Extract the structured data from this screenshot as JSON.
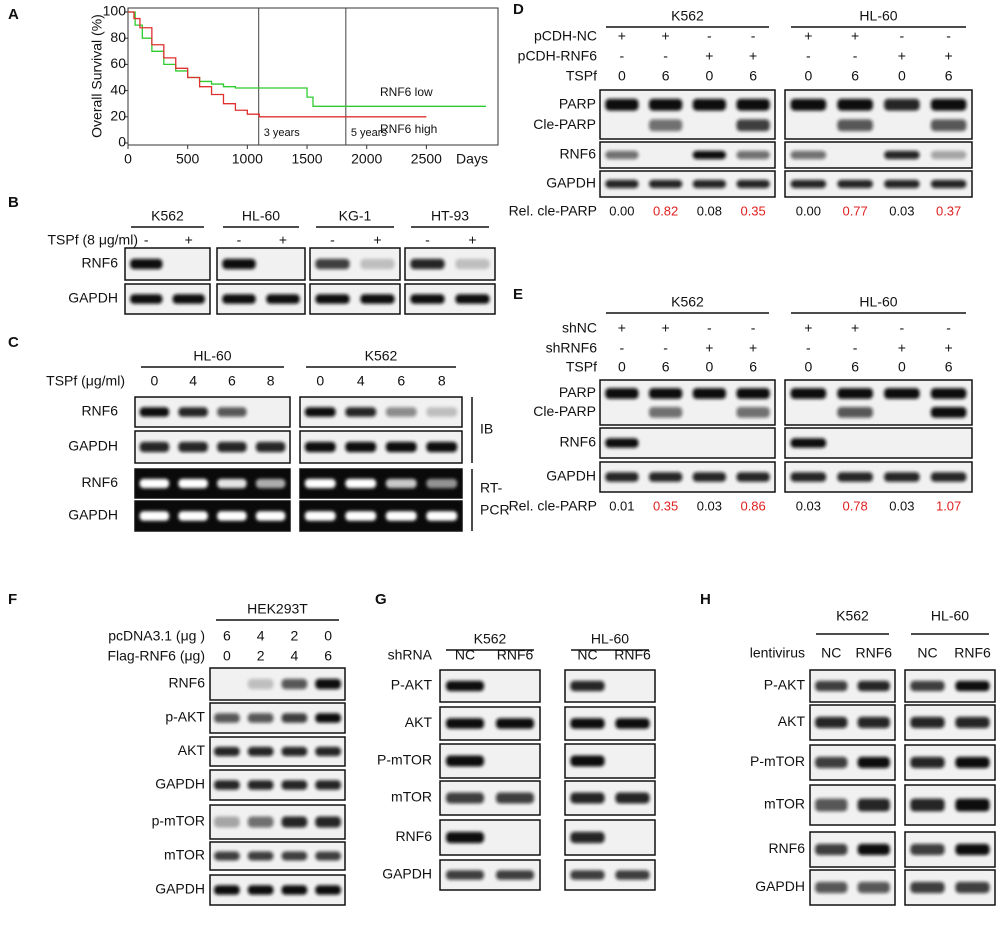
{
  "panels": {
    "A": {
      "label": "A",
      "type": "line",
      "ylabel": "Overall Survival (%)",
      "xlabel": "Days",
      "xlim": [
        0,
        3100
      ],
      "ylim": [
        0,
        100
      ],
      "xticks": [
        0,
        500,
        1000,
        1500,
        2000,
        2500
      ],
      "yticks": [
        0,
        20,
        40,
        60,
        80,
        100
      ],
      "vlines": [
        {
          "x": 1095,
          "label": "3 years"
        },
        {
          "x": 1825,
          "label": "5 years"
        }
      ],
      "series": [
        {
          "name": "RNF6 low",
          "color": "#2ecc2e",
          "x": [
            0,
            60,
            120,
            200,
            300,
            400,
            500,
            600,
            700,
            800,
            900,
            1000,
            1500,
            1550,
            3000
          ],
          "values": [
            100,
            90,
            80,
            70,
            60,
            55,
            50,
            47,
            45,
            43,
            42,
            42,
            35,
            28,
            28
          ]
        },
        {
          "name": "RNF6 high",
          "color": "#e03030",
          "x": [
            0,
            50,
            100,
            200,
            300,
            400,
            500,
            600,
            700,
            800,
            900,
            1000,
            1100,
            2500
          ],
          "values": [
            100,
            95,
            88,
            75,
            65,
            57,
            50,
            43,
            37,
            30,
            25,
            22,
            20,
            20
          ]
        }
      ]
    },
    "B": {
      "label": "B",
      "groups": [
        "K562",
        "HL-60",
        "KG-1",
        "HT-93"
      ],
      "conditions": [
        {
          "name": "TSPf (8 μg/ml)",
          "lanes": [
            [
              "-",
              "+"
            ],
            [
              "-",
              "+"
            ],
            [
              "-",
              "+"
            ],
            [
              "-",
              "+"
            ]
          ]
        }
      ],
      "rows": [
        {
          "labels": [
            "RNF6"
          ]
        },
        {
          "labels": [
            "GAPDH"
          ]
        }
      ]
    },
    "C": {
      "label": "C",
      "groups": [
        "HL-60",
        "K562"
      ],
      "conditions": [
        {
          "name": "TSPf (μg/ml)",
          "lanes": [
            [
              "0",
              "4",
              "6",
              "8"
            ],
            [
              "0",
              "4",
              "6",
              "8"
            ]
          ]
        }
      ],
      "rows": [
        {
          "labels": [
            "RNF6"
          ]
        },
        {
          "labels": [
            "GAPDH"
          ]
        },
        {
          "labels": [
            "RNF6"
          ]
        },
        {
          "labels": [
            "GAPDH"
          ]
        }
      ],
      "side_labels": [
        [
          "IB"
        ],
        [
          "RT-",
          "PCR"
        ]
      ]
    },
    "D": {
      "label": "D",
      "groups": [
        "K562",
        "HL-60"
      ],
      "conditions": [
        {
          "name": "pCDH-NC",
          "lanes": [
            [
              "+",
              "+",
              "-",
              "-"
            ],
            [
              "+",
              "+",
              "-",
              "-"
            ]
          ]
        },
        {
          "name": "pCDH-RNF6",
          "lanes": [
            [
              "-",
              "-",
              "+",
              "+"
            ],
            [
              "-",
              "-",
              "+",
              "+"
            ]
          ]
        },
        {
          "name": "TSPf",
          "lanes": [
            [
              "0",
              "6",
              "0",
              "6"
            ],
            [
              "0",
              "6",
              "0",
              "6"
            ]
          ]
        }
      ],
      "rows": [
        {
          "labels": [
            "PARP",
            "Cle-PARP"
          ]
        },
        {
          "labels": [
            "RNF6"
          ]
        },
        {
          "labels": [
            "GAPDH"
          ]
        }
      ],
      "quant": {
        "label": "Rel. cle-PARP",
        "values": [
          [
            "0.00",
            "0.82",
            "0.08",
            "0.35"
          ],
          [
            "0.00",
            "0.77",
            "0.03",
            "0.37"
          ]
        ]
      }
    },
    "E": {
      "label": "E",
      "groups": [
        "K562",
        "HL-60"
      ],
      "conditions": [
        {
          "name": "shNC",
          "lanes": [
            [
              "+",
              "+",
              "-",
              "-"
            ],
            [
              "+",
              "+",
              "-",
              "-"
            ]
          ]
        },
        {
          "name": "shRNF6",
          "lanes": [
            [
              "-",
              "-",
              "+",
              "+"
            ],
            [
              "-",
              "-",
              "+",
              "+"
            ]
          ]
        },
        {
          "name": "TSPf",
          "lanes": [
            [
              "0",
              "6",
              "0",
              "6"
            ],
            [
              "0",
              "6",
              "0",
              "6"
            ]
          ]
        }
      ],
      "rows": [
        {
          "labels": [
            "PARP",
            "Cle-PARP"
          ]
        },
        {
          "labels": [
            "RNF6"
          ]
        },
        {
          "labels": [
            "GAPDH"
          ]
        }
      ],
      "quant": {
        "label": "Rel. cle-PARP",
        "values": [
          [
            "0.01",
            "0.35",
            "0.03",
            "0.86"
          ],
          [
            "0.03",
            "0.78",
            "0.03",
            "1.07"
          ]
        ]
      }
    },
    "F": {
      "label": "F",
      "groups": [
        "HEK293T"
      ],
      "conditions": [
        {
          "name": "pcDNA3.1 (μg )",
          "lanes": [
            [
              "6",
              "4",
              "2",
              "0"
            ]
          ]
        },
        {
          "name": "Flag-RNF6 (μg)",
          "lanes": [
            [
              "0",
              "2",
              "4",
              "6"
            ]
          ]
        }
      ],
      "rows": [
        {
          "labels": [
            "RNF6"
          ]
        },
        {
          "labels": [
            "p-AKT"
          ]
        },
        {
          "labels": [
            "AKT"
          ]
        },
        {
          "labels": [
            "GAPDH"
          ]
        },
        {
          "labels": [
            "p-mTOR"
          ]
        },
        {
          "labels": [
            "mTOR"
          ]
        },
        {
          "labels": [
            "GAPDH"
          ]
        }
      ]
    },
    "G": {
      "label": "G",
      "groups": [
        "K562",
        "HL-60"
      ],
      "conditions": [
        {
          "name": "shRNA",
          "lanes": [
            [
              "NC",
              "RNF6"
            ],
            [
              "NC",
              "RNF6"
            ]
          ]
        }
      ],
      "rows": [
        {
          "labels": [
            "P-AKT"
          ]
        },
        {
          "labels": [
            "AKT"
          ]
        },
        {
          "labels": [
            "P-mTOR"
          ]
        },
        {
          "labels": [
            "mTOR"
          ]
        },
        {
          "labels": [
            "RNF6"
          ]
        },
        {
          "labels": [
            "GAPDH"
          ]
        }
      ]
    },
    "H": {
      "label": "H",
      "groups": [
        "K562",
        "HL-60"
      ],
      "conditions": [
        {
          "name": "lentivirus",
          "lanes": [
            [
              "NC",
              "RNF6"
            ],
            [
              "NC",
              "RNF6"
            ]
          ]
        }
      ],
      "rows": [
        {
          "labels": [
            "P-AKT"
          ]
        },
        {
          "labels": [
            "AKT"
          ]
        },
        {
          "labels": [
            "P-mTOR"
          ]
        },
        {
          "labels": [
            "mTOR"
          ]
        },
        {
          "labels": [
            "RNF6"
          ]
        },
        {
          "labels": [
            "GAPDH"
          ]
        }
      ]
    }
  }
}
